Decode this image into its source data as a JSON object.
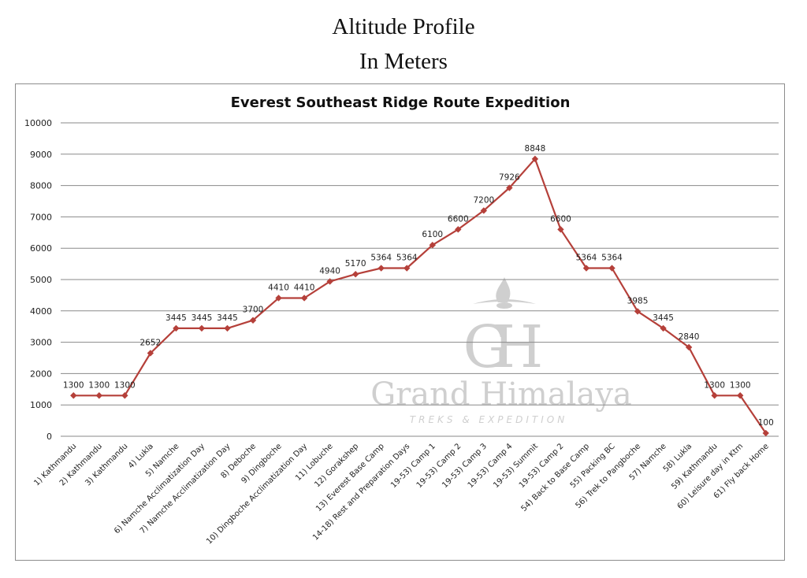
{
  "header": {
    "title_line1": "Altitude Profile",
    "title_line2": "In Meters"
  },
  "watermark": {
    "brand": "Grand Himalaya",
    "tagline": "TREKS & EXPEDITION"
  },
  "chart_data": {
    "type": "line",
    "title": "Everest Southeast Ridge Route Expedition",
    "xlabel": "",
    "ylabel": "",
    "ylim": [
      0,
      10000
    ],
    "yticks": [
      0,
      1000,
      2000,
      3000,
      4000,
      5000,
      6000,
      7000,
      8000,
      9000,
      10000
    ],
    "grid": true,
    "legend": "none",
    "colors": {
      "line": "#b5403a",
      "grid": "#8a8a8a",
      "watermark": "#cfcfcf"
    },
    "categories": [
      "1) Kathmandu",
      "2) Kathmandu",
      "3) Kathmandu",
      "4) Lukla",
      "5) Namche",
      "6) Namche Acclimatization Day",
      "7) Namche Acclimatization Day",
      "8) Deboche",
      "9) Dingboche",
      "10) Dingboche Acclimatization Day",
      "11) Lobuche",
      "12) Gorakshep",
      "13) Everest Base Camp",
      "14-18) Rest and Preparation Days",
      "19-53) Camp 1",
      "19-53) Camp 2",
      "19-53) Camp 3",
      "19-53) Camp 4",
      "19-53) Summit",
      "19-53) Camp 2",
      "54) Back to Base Camp",
      "55) Packing BC",
      "56) Trek to Pangboche",
      "57) Namche",
      "58) Lukla",
      "59) Kathmandu",
      "60) Leisure day in Ktm",
      "61) Fly back Home"
    ],
    "values": [
      1300,
      1300,
      1300,
      2652,
      3445,
      3445,
      3445,
      3700,
      4410,
      4410,
      4940,
      5170,
      5364,
      5364,
      6100,
      6600,
      7200,
      7926,
      8848,
      6600,
      5364,
      5364,
      3985,
      3445,
      2840,
      1300,
      1300,
      100
    ]
  }
}
